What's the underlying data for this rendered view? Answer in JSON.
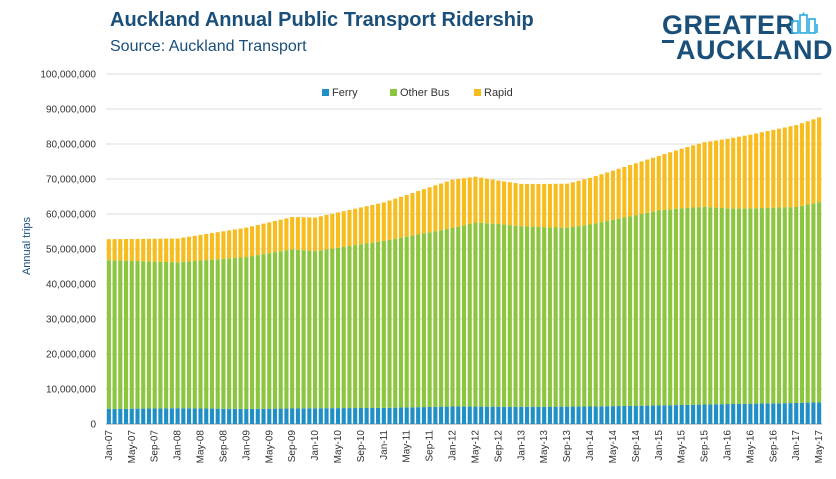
{
  "header": {
    "title": "Auckland Annual Public Transport Ridership",
    "subtitle": "Source: Auckland Transport"
  },
  "logo": {
    "line1": "GREATER",
    "line2": "AUCKLAND",
    "icon": "city-skyline-icon"
  },
  "colors": {
    "ferry": "#1f8fc6",
    "other_bus": "#8cc63f",
    "rapid": "#f7bd1e",
    "text": "#1a4f7a",
    "grid": "#dcdcdc"
  },
  "chart_data": {
    "type": "bar",
    "stacked": true,
    "ylabel": "Annual trips",
    "ylim": [
      0,
      100000000
    ],
    "yticks": [
      "0",
      "10,000,000",
      "20,000,000",
      "30,000,000",
      "40,000,000",
      "50,000,000",
      "60,000,000",
      "70,000,000",
      "80,000,000",
      "90,000,000",
      "100,000,000"
    ],
    "x_tick_labels": [
      "Jan-07",
      "May-07",
      "Sep-07",
      "Jan-08",
      "May-08",
      "Sep-08",
      "Jan-09",
      "May-09",
      "Sep-09",
      "Jan-10",
      "May-10",
      "Sep-10",
      "Jan-11",
      "May-11",
      "Sep-11",
      "Jan-12",
      "May-12",
      "Sep-12",
      "Jan-13",
      "May-13",
      "Sep-13",
      "Jan-14",
      "May-14",
      "Sep-14",
      "Jan-15",
      "May-15",
      "Sep-15",
      "Jan-16",
      "May-16",
      "Sep-16",
      "Jan-17",
      "May-17"
    ],
    "grid": true,
    "legend_position": "top-center",
    "period": {
      "start": "Jan-07",
      "end": "May-17",
      "interval": "monthly"
    },
    "series": [
      {
        "name": "Ferry",
        "color": "#1f8fc6",
        "keypoints": [
          [
            "Jan-07",
            4300000
          ],
          [
            "Jan-08",
            4500000
          ],
          [
            "Jan-09",
            4300000
          ],
          [
            "Jan-10",
            4500000
          ],
          [
            "Jan-11",
            4600000
          ],
          [
            "Jan-12",
            5000000
          ],
          [
            "Jan-13",
            4900000
          ],
          [
            "Jan-14",
            5000000
          ],
          [
            "Jan-15",
            5300000
          ],
          [
            "Jan-16",
            5700000
          ],
          [
            "Jan-17",
            6000000
          ],
          [
            "May-17",
            6200000
          ]
        ]
      },
      {
        "name": "Other Bus",
        "color": "#8cc63f",
        "keypoints": [
          [
            "Jan-07",
            42500000
          ],
          [
            "Jan-08",
            41700000
          ],
          [
            "Jan-09",
            43400000
          ],
          [
            "Sep-09",
            45500000
          ],
          [
            "Jan-10",
            44900000
          ],
          [
            "Jan-11",
            47700000
          ],
          [
            "Jan-12",
            51000000
          ],
          [
            "May-12",
            52600000
          ],
          [
            "Sep-12",
            52200000
          ],
          [
            "Jan-13",
            51600000
          ],
          [
            "May-13",
            51300000
          ],
          [
            "Sep-13",
            51100000
          ],
          [
            "Jan-14",
            52000000
          ],
          [
            "Jan-15",
            55700000
          ],
          [
            "May-15",
            56200000
          ],
          [
            "Sep-15",
            56500000
          ],
          [
            "Jan-16",
            55900000
          ],
          [
            "May-16",
            55800000
          ],
          [
            "Sep-16",
            55900000
          ],
          [
            "Jan-17",
            56000000
          ],
          [
            "May-17",
            57200000
          ]
        ]
      },
      {
        "name": "Rapid",
        "color": "#f7bd1e",
        "keypoints": [
          [
            "Jan-07",
            6000000
          ],
          [
            "Jan-08",
            6800000
          ],
          [
            "Jan-09",
            8400000
          ],
          [
            "Jan-10",
            9600000
          ],
          [
            "Jan-11",
            11000000
          ],
          [
            "Jan-12",
            13800000
          ],
          [
            "Sep-12",
            12400000
          ],
          [
            "Jan-13",
            12100000
          ],
          [
            "Sep-13",
            12600000
          ],
          [
            "Jan-14",
            13300000
          ],
          [
            "Jan-15",
            15600000
          ],
          [
            "Jan-16",
            19900000
          ],
          [
            "Jan-17",
            23400000
          ],
          [
            "May-17",
            24200000
          ]
        ]
      }
    ]
  }
}
